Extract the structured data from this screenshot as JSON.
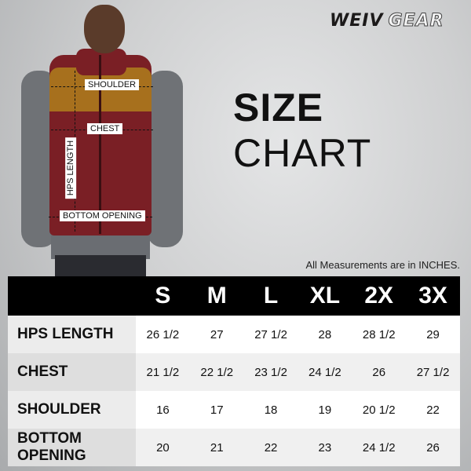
{
  "brand": {
    "logo_part1": "WEIV",
    "logo_part2": "GEAR"
  },
  "title": {
    "bold": "SIZE",
    "regular": "CHART"
  },
  "note": "All Measurements are in INCHES.",
  "diagram_labels": {
    "shoulder": "SHOULDER",
    "chest": "CHEST",
    "hps_length": "HPS LENGTH",
    "bottom_opening": "BOTTOM OPENING"
  },
  "table": {
    "sizes": [
      "S",
      "M",
      "L",
      "XL",
      "2X",
      "3X"
    ],
    "rows": [
      {
        "label": "HPS LENGTH",
        "values": [
          "26 1/2",
          "27",
          "27 1/2",
          "28",
          "28 1/2",
          "29"
        ]
      },
      {
        "label": "CHEST",
        "values": [
          "21 1/2",
          "22 1/2",
          "23 1/2",
          "24 1/2",
          "26",
          "27 1/2"
        ]
      },
      {
        "label": "SHOULDER",
        "values": [
          "16",
          "17",
          "18",
          "19",
          "20 1/2",
          "22"
        ]
      },
      {
        "label": "BOTTOM OPENING",
        "values": [
          "20",
          "21",
          "22",
          "23",
          "24 1/2",
          "26"
        ]
      }
    ]
  },
  "colors": {
    "vest_body": "#7a1f25",
    "vest_yoke": "#a7701d",
    "header_bg": "#000000"
  }
}
